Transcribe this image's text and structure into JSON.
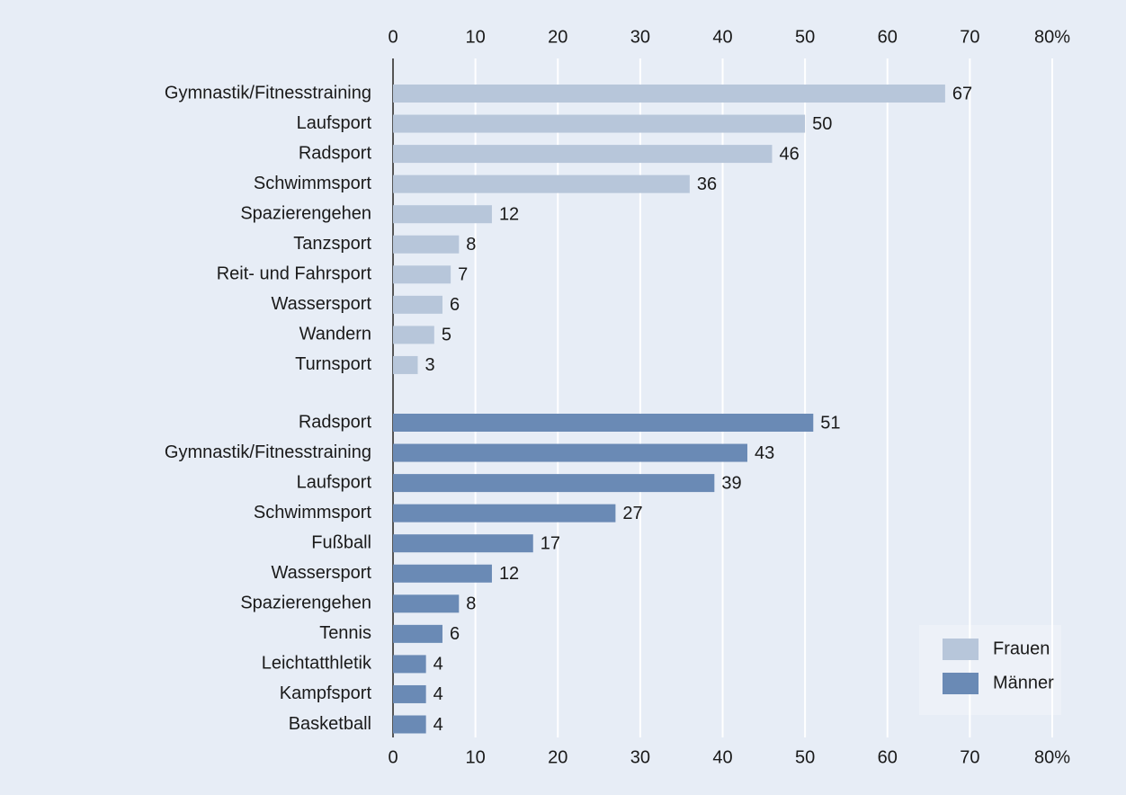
{
  "chart_data": {
    "type": "bar",
    "orientation": "horizontal",
    "grid": true,
    "legend": "lower right",
    "xlim": [
      0,
      80
    ],
    "xticks": [
      0,
      10,
      20,
      30,
      40,
      50,
      60,
      70,
      {
        "value": 80,
        "label": "80%"
      }
    ],
    "series": [
      {
        "name": "Frauen",
        "color": "#b7c6da",
        "categories": [
          "Gymnastik/Fitnesstraining",
          "Laufsport",
          "Radsport",
          "Schwimmsport",
          "Spazierengehen",
          "Tanzsport",
          "Reit- und Fahrsport",
          "Wassersport",
          "Wandern",
          "Turnsport"
        ],
        "values": [
          67,
          50,
          46,
          36,
          12,
          8,
          7,
          6,
          5,
          3
        ]
      },
      {
        "name": "Männer",
        "color": "#6a8ab5",
        "categories": [
          "Radsport",
          "Gymnastik/Fitnesstraining",
          "Laufsport",
          "Schwimmsport",
          "Fußball",
          "Wassersport",
          "Spazierengehen",
          "Tennis",
          "Leichtatthletik",
          "Kampfsport",
          "Basketball"
        ],
        "values": [
          51,
          43,
          39,
          27,
          17,
          12,
          8,
          6,
          4,
          4,
          4
        ]
      }
    ]
  }
}
